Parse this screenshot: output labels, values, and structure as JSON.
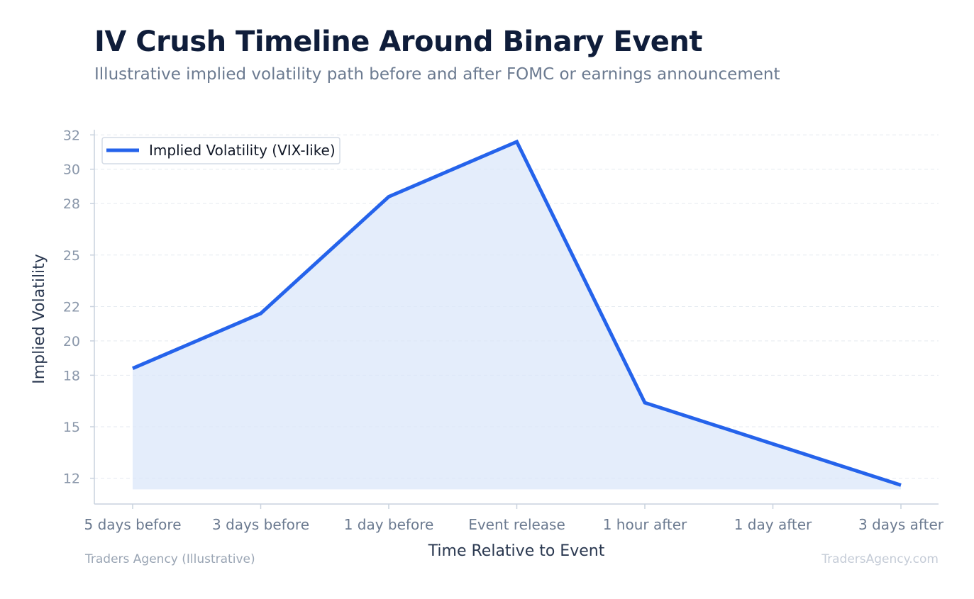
{
  "header": {
    "title": "IV Crush Timeline Around Binary Event",
    "subtitle": "Illustrative implied volatility path before and after FOMC or earnings announcement"
  },
  "footer": {
    "left": "Traders Agency (Illustrative)",
    "right": "TradersAgency.com"
  },
  "colors": {
    "line": "#2563eb",
    "fill": "#dbe7f9",
    "grid": "#e5eaf0",
    "axis": "#c9d2de"
  },
  "chart_data": {
    "type": "area",
    "title": "IV Crush Timeline Around Binary Event",
    "subtitle": "Illustrative implied volatility path before and after FOMC or earnings announcement",
    "xlabel": "Time Relative to Event",
    "ylabel": "Implied Volatility",
    "categories": [
      "5 days before",
      "3 days before",
      "1 day before",
      "Event release",
      "1 hour after",
      "1 day after",
      "3 days after"
    ],
    "series": [
      {
        "name": "Implied Volatility (VIX-like)",
        "values": [
          18.4,
          21.6,
          28.4,
          31.6,
          16.4,
          14.0,
          11.6
        ]
      }
    ],
    "yticks": [
      "12",
      "15",
      "18",
      "20",
      "22",
      "25",
      "28",
      "30",
      "32"
    ],
    "ylim": [
      10.5,
      32.3
    ],
    "fill_baseline": 11.35,
    "grid": true,
    "legend_position": "top-left"
  }
}
